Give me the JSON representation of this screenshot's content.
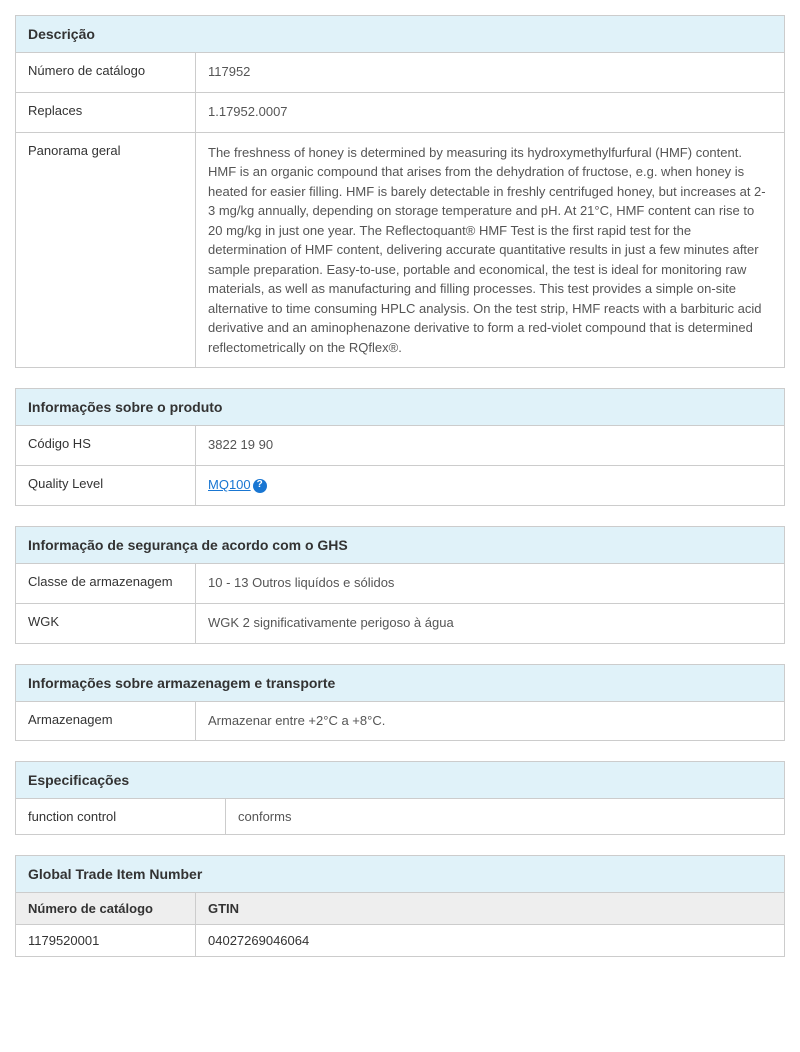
{
  "colors": {
    "header_bg": "#e0f2f9",
    "border": "#cccccc",
    "text": "#333333",
    "value_text": "#555555",
    "link": "#1976d2",
    "gtin_header_bg": "#eeeeee",
    "background": "#ffffff"
  },
  "typography": {
    "body_fontsize": 13,
    "header_fontsize": 14,
    "font_family": "Arial"
  },
  "layout": {
    "label_col_width": 180,
    "spec_label_col_width": 210
  },
  "descricao": {
    "title": "Descrição",
    "rows": [
      {
        "label": "Número de catálogo",
        "value": "117952"
      },
      {
        "label": "Replaces",
        "value": "1.17952.0007"
      },
      {
        "label": "Panorama geral",
        "value": "The freshness of honey is determined by measuring its hydroxymethylfurfural (HMF) content. HMF is an organic compound that arises from the dehydration of fructose, e.g. when honey is heated for easier filling. HMF is barely detectable in freshly centrifuged honey, but increases at 2-3 mg/kg annually, depending on storage temperature and pH. At 21°C, HMF content can rise to 20 mg/kg in just one year. The Reflectoquant® HMF Test is the first rapid test for the determination of HMF content, delivering accurate quantitative results in just a few minutes after sample preparation. Easy-to-use, portable and economical, the test is ideal for monitoring raw materials, as well as manufacturing and filling processes. This test provides a simple on-site alternative to time consuming HPLC analysis. On the test strip, HMF reacts with a barbituric acid derivative and an aminophenazone derivative to form a red-violet compound that is determined reflectometrically on the RQflex®."
      }
    ]
  },
  "info_produto": {
    "title": "Informações sobre o produto",
    "hs_label": "Código HS",
    "hs_value": "3822 19 90",
    "ql_label": "Quality Level",
    "ql_link_text": "MQ100",
    "help_symbol": "?"
  },
  "seguranca": {
    "title": "Informação de segurança de acordo com o GHS",
    "rows": [
      {
        "label": "Classe de armazenagem",
        "value": "10 - 13 Outros liquídos e sólidos"
      },
      {
        "label": "WGK",
        "value": "WGK 2 significativamente perigoso à água"
      }
    ]
  },
  "armazenagem": {
    "title": "Informações sobre armazenagem e transporte",
    "rows": [
      {
        "label": "Armazenagem",
        "value": "Armazenar entre +2°C a +8°C."
      }
    ]
  },
  "especificacoes": {
    "title": "Especificações",
    "rows": [
      {
        "label": "function control",
        "value": "conforms"
      }
    ]
  },
  "gtin": {
    "title": "Global Trade Item Number",
    "col1_header": "Número de catálogo",
    "col2_header": "GTIN",
    "rows": [
      {
        "catalog": "1179520001",
        "gtin": "04027269046064"
      }
    ]
  }
}
